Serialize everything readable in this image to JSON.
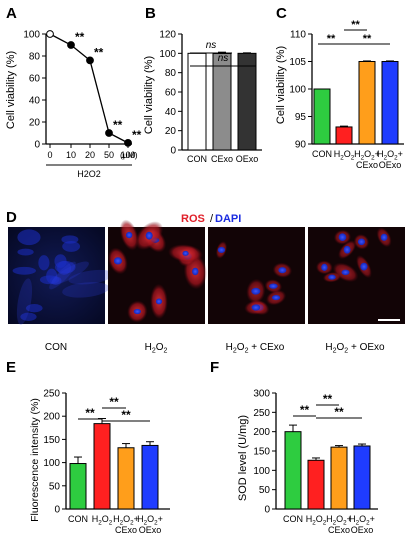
{
  "figure": {
    "panels": {
      "A": "A",
      "B": "B",
      "C": "C",
      "D": "D",
      "E": "E",
      "F": "F"
    },
    "stain": {
      "ros": "ROS",
      "slash": "/",
      "dapi": "DAPI"
    },
    "image_labels": [
      "CON",
      "H2O2",
      "H2O2 + CExo",
      "H2O2 + OExo"
    ],
    "colors": {
      "con": "#2ecc40",
      "h2o2": "#ff2020",
      "cexo": "#ff9e1b",
      "oexo": "#1f3cff",
      "b_con": "#ffffff",
      "b_cexo": "#8c8c8c",
      "b_oexo": "#333333",
      "dapi": "#1a2be0",
      "ros": "#d81f2a"
    }
  },
  "chart_data": [
    {
      "panel": "A",
      "type": "line",
      "x": [
        "0",
        "10",
        "20",
        "50",
        "100"
      ],
      "x_unit": "(μM)",
      "xlabel": "H2O2",
      "ylabel": "Cell viability (%)",
      "ylim": [
        0,
        100
      ],
      "yticks": [
        "0",
        "20",
        "40",
        "60",
        "80",
        "100"
      ],
      "values": [
        100,
        90,
        76,
        10,
        1
      ],
      "annotations": [
        "",
        "**",
        "**",
        "**",
        "**"
      ]
    },
    {
      "panel": "B",
      "type": "bar",
      "categories": [
        "CON",
        "CExo",
        "OExo"
      ],
      "values": [
        100,
        99.8,
        100
      ],
      "errors": [
        0,
        1.4,
        0.5
      ],
      "ylabel": "Cell viability (%)",
      "ylim": [
        0,
        120
      ],
      "yticks": [
        "0",
        "20",
        "40",
        "60",
        "80",
        "100",
        "120"
      ],
      "annotations": [
        "ns",
        "ns"
      ]
    },
    {
      "panel": "C",
      "type": "bar",
      "categories": [
        "CON",
        "H2O2",
        "H2O2+ CExo",
        "H2O2+ OExo"
      ],
      "values": [
        100,
        93.1,
        105.0,
        105.0
      ],
      "errors": [
        0,
        0.15,
        0.1,
        0.1
      ],
      "ylabel": "Cell viability (%)",
      "ylim": [
        90,
        110
      ],
      "yticks": [
        "90",
        "95",
        "100",
        "105",
        "110"
      ],
      "annotations": [
        "**",
        "**",
        "**"
      ]
    },
    {
      "panel": "E",
      "type": "bar",
      "categories": [
        "CON",
        "H2O2",
        "H2O2+ CExo",
        "H2O2+ OExo"
      ],
      "values": [
        98,
        184,
        132,
        137
      ],
      "errors": [
        14,
        11,
        9,
        8
      ],
      "ylabel": "Fluorescence intensity (%)",
      "ylim": [
        0,
        250
      ],
      "yticks": [
        "0",
        "50",
        "100",
        "150",
        "200",
        "250"
      ],
      "annotations": [
        "**",
        "**",
        "**"
      ]
    },
    {
      "panel": "F",
      "type": "bar",
      "categories": [
        "CON",
        "H2O2",
        "H2O2+ CExo",
        "H2O2+ OExo"
      ],
      "values": [
        200,
        126,
        160,
        163
      ],
      "errors": [
        17,
        6,
        4,
        5
      ],
      "ylabel": "SOD level (U/mg)",
      "ylim": [
        0,
        300
      ],
      "yticks": [
        "0",
        "50",
        "100",
        "150",
        "200",
        "250",
        "300"
      ],
      "annotations": [
        "**",
        "**",
        "**"
      ]
    }
  ]
}
